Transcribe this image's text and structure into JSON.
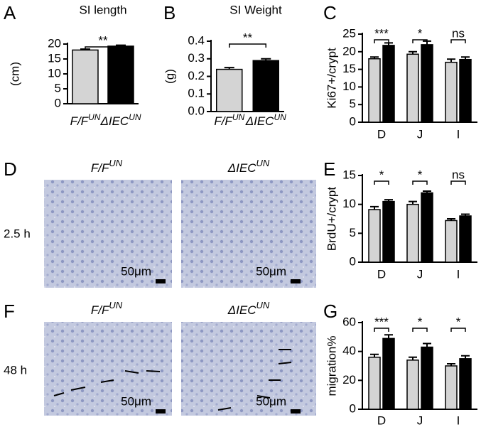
{
  "chart_data": [
    {
      "type": "bar",
      "panel": "A",
      "title": "SI length",
      "ylabel": "(cm)",
      "categories": [
        "F/F",
        "ΔIEC"
      ],
      "category_superscripts": [
        "UN",
        "UN"
      ],
      "values": [
        18,
        19.3
      ],
      "errors": [
        0.3,
        0.3
      ],
      "colors": [
        "#d4d4d4",
        "#000000"
      ],
      "ylim": [
        0,
        20
      ],
      "yticks": [
        0,
        5,
        10,
        15,
        20
      ],
      "annotations": [
        "**"
      ]
    },
    {
      "type": "bar",
      "panel": "B",
      "title": "SI Weight",
      "ylabel": "(g)",
      "categories": [
        "F/F",
        "ΔIEC"
      ],
      "category_superscripts": [
        "UN",
        "UN"
      ],
      "values": [
        0.24,
        0.29
      ],
      "errors": [
        0.01,
        0.01
      ],
      "colors": [
        "#d4d4d4",
        "#000000"
      ],
      "ylim": [
        0,
        0.4
      ],
      "yticks": [
        {
          "value": 0,
          "label": "0.0"
        },
        0.1,
        0.2,
        0.3,
        0.4
      ],
      "annotations": [
        "**"
      ]
    },
    {
      "type": "grouped-bar",
      "panel": "C",
      "ylabel": "Ki67+/crypt",
      "categories": [
        "D",
        "J",
        "I"
      ],
      "series": [
        {
          "color": "#d4d4d4",
          "values": [
            18,
            19.3,
            17
          ],
          "errors": [
            0.5,
            0.7,
            0.9
          ]
        },
        {
          "color": "#000000",
          "values": [
            21.8,
            22,
            17.8
          ],
          "errors": [
            0.7,
            1,
            0.7
          ]
        }
      ],
      "ylim": [
        0,
        25
      ],
      "yticks": [
        0,
        5,
        10,
        15,
        20,
        25
      ],
      "annotations": [
        "***",
        "*",
        "ns"
      ]
    },
    {
      "type": "grouped-bar",
      "panel": "E",
      "ylabel": "BrdU+/crypt",
      "categories": [
        "D",
        "J",
        "I"
      ],
      "series": [
        {
          "color": "#d4d4d4",
          "values": [
            9.1,
            10,
            7.2
          ],
          "errors": [
            0.5,
            0.5,
            0.3
          ]
        },
        {
          "color": "#000000",
          "values": [
            10.5,
            12,
            8
          ],
          "errors": [
            0.3,
            0.3,
            0.3
          ]
        }
      ],
      "ylim": [
        0,
        15
      ],
      "yticks": [
        0,
        5,
        10,
        15
      ],
      "annotations": [
        "*",
        "*",
        "ns"
      ]
    },
    {
      "type": "grouped-bar",
      "panel": "G",
      "ylabel": "migration%",
      "categories": [
        "D",
        "J",
        "I"
      ],
      "series": [
        {
          "color": "#d4d4d4",
          "values": [
            36,
            34,
            30
          ],
          "errors": [
            2,
            2,
            1.5
          ]
        },
        {
          "color": "#000000",
          "values": [
            49,
            43,
            35
          ],
          "errors": [
            2.5,
            2.5,
            2
          ]
        }
      ],
      "ylim": [
        0,
        60
      ],
      "yticks": [
        0,
        20,
        40,
        60
      ],
      "annotations": [
        "***",
        "*",
        "*"
      ]
    }
  ],
  "images": {
    "panels": [
      "D",
      "F"
    ],
    "column_labels": [
      {
        "text": "F/F",
        "sup": "UN"
      },
      {
        "text": "ΔIEC",
        "sup": "UN"
      }
    ],
    "row_labels": [
      "2.5 h",
      "48 h"
    ],
    "scale_bar": "50μm"
  }
}
